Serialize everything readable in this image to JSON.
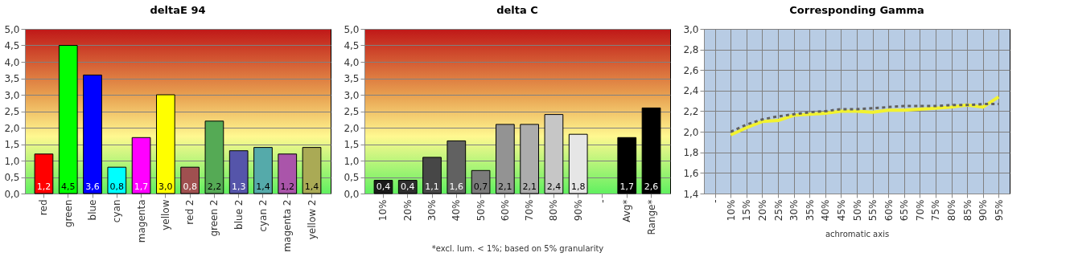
{
  "chart_data": [
    {
      "type": "bar",
      "title": "deltaE 94",
      "categories": [
        "red",
        "green",
        "blue",
        "cyan",
        "magenta",
        "yellow",
        "red 2",
        "green 2",
        "blue 2",
        "cyan 2",
        "magenta 2",
        "yellow 2"
      ],
      "values": [
        1.2,
        4.5,
        3.6,
        0.8,
        1.7,
        3.0,
        0.8,
        2.2,
        1.3,
        1.4,
        1.2,
        1.4
      ],
      "colors": [
        "#ff0000",
        "#00ff00",
        "#0000ff",
        "#00ffff",
        "#ff00ff",
        "#ffff00",
        "#a05050",
        "#55aa55",
        "#5555aa",
        "#55aaaa",
        "#aa55aa",
        "#aaaa55"
      ],
      "ylim": [
        0,
        5
      ],
      "yticks": [
        {
          "value": 0,
          "label": "0,0"
        },
        {
          "value": 0.5,
          "label": "0,5"
        },
        {
          "value": 1,
          "label": "1,0"
        },
        {
          "value": 1.5,
          "label": "1,5"
        },
        {
          "value": 2,
          "label": "2,0"
        },
        {
          "value": 2.5,
          "label": "2,5"
        },
        {
          "value": 3,
          "label": "3,0"
        },
        {
          "value": 3.5,
          "label": "3,5"
        },
        {
          "value": 4,
          "label": "4,0"
        },
        {
          "value": 4.5,
          "label": "4,5"
        },
        {
          "value": 5,
          "label": "5,0"
        }
      ],
      "grid": "y",
      "legend": false,
      "value_labels": [
        "1,2",
        "4,5",
        "3,6",
        "0,8",
        "1,7",
        "3,0",
        "0,8",
        "2,2",
        "1,3",
        "1,4",
        "1,2",
        "1,4"
      ]
    },
    {
      "type": "bar",
      "title": "delta C",
      "categories": [
        "10%",
        "20%",
        "30%",
        "40%",
        "50%",
        "60%",
        "70%",
        "80%",
        "90%",
        "-",
        "Avg*",
        "Range*"
      ],
      "values": [
        0.4,
        0.4,
        1.1,
        1.6,
        0.7,
        2.1,
        2.1,
        2.4,
        1.8,
        null,
        1.7,
        2.6
      ],
      "colors": [
        "#1a1a1a",
        "#2e2e2e",
        "#474747",
        "#616161",
        "#7a7a7a",
        "#939393",
        "#acacac",
        "#c6c6c6",
        "#e6e6e6",
        "#000000",
        "#000000",
        "#000000"
      ],
      "ylim": [
        0,
        5
      ],
      "yticks": [
        {
          "value": 0,
          "label": "0,0"
        },
        {
          "value": 0.5,
          "label": "0,5"
        },
        {
          "value": 1,
          "label": "1,0"
        },
        {
          "value": 1.5,
          "label": "1,5"
        },
        {
          "value": 2,
          "label": "2,0"
        },
        {
          "value": 2.5,
          "label": "2,5"
        },
        {
          "value": 3,
          "label": "3,0"
        },
        {
          "value": 3.5,
          "label": "3,5"
        },
        {
          "value": 4,
          "label": "4,0"
        },
        {
          "value": 4.5,
          "label": "4,5"
        },
        {
          "value": 5,
          "label": "5,0"
        }
      ],
      "grid": "y",
      "legend": false,
      "value_labels": [
        "0,4",
        "0,4",
        "1,1",
        "1,6",
        "0,7",
        "2,1",
        "2,1",
        "2,4",
        "1,8",
        null,
        "1,7",
        "2,6"
      ],
      "annotations": [
        "*excl. lum. < 1%; based on 5% granularity"
      ]
    },
    {
      "type": "line",
      "title": "Corresponding Gamma",
      "xlabel": "achromatic axis",
      "categories": [
        "-",
        "10%",
        "15%",
        "20%",
        "25%",
        "30%",
        "35%",
        "40%",
        "45%",
        "50%",
        "55%",
        "60%",
        "65%",
        "70%",
        "75%",
        "80%",
        "85%",
        "90%",
        "95%"
      ],
      "series": [
        {
          "color": "#f2f230",
          "line_style": "solid",
          "values": [
            null,
            1.97,
            2.04,
            2.1,
            2.11,
            2.16,
            2.17,
            2.18,
            2.2,
            2.2,
            2.19,
            2.21,
            2.21,
            2.22,
            2.23,
            2.24,
            2.26,
            2.24,
            2.34
          ]
        },
        {
          "color": "#606060",
          "line_style": "dashed",
          "values": [
            null,
            2.0,
            2.07,
            2.12,
            2.15,
            2.17,
            2.19,
            2.2,
            2.22,
            2.22,
            2.23,
            2.24,
            2.25,
            2.25,
            2.25,
            2.26,
            2.26,
            2.27,
            2.27
          ]
        }
      ],
      "ylim": [
        1.4,
        3.0
      ],
      "yticks": [
        {
          "value": 1.4,
          "label": "1,4"
        },
        {
          "value": 1.6,
          "label": "1,6"
        },
        {
          "value": 1.8,
          "label": "1,8"
        },
        {
          "value": 2.0,
          "label": "2,0"
        },
        {
          "value": 2.2,
          "label": "2,2"
        },
        {
          "value": 2.4,
          "label": "2,4"
        },
        {
          "value": 2.6,
          "label": "2,6"
        },
        {
          "value": 2.8,
          "label": "2,8"
        },
        {
          "value": 3.0,
          "label": "3,0"
        }
      ],
      "grid": true,
      "legend": false,
      "marker": "none"
    }
  ]
}
